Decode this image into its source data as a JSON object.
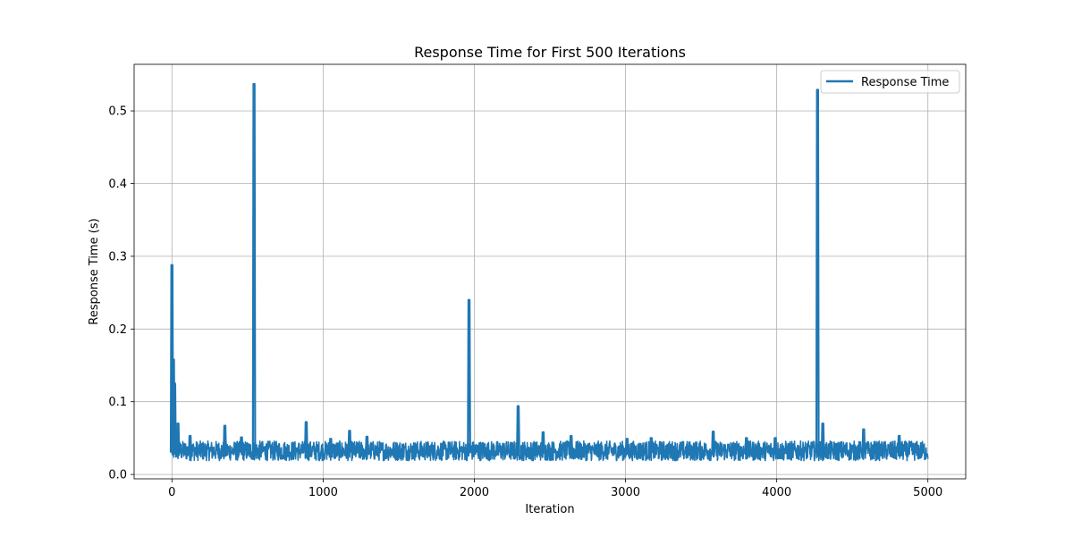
{
  "chart_data": {
    "type": "line",
    "title": "Response Time for First 500 Iterations",
    "xlabel": "Iteration",
    "ylabel": "Response Time (s)",
    "xlim": [
      -250,
      5250
    ],
    "ylim": [
      -0.006,
      0.564
    ],
    "xticks": [
      0,
      1000,
      2000,
      3000,
      4000,
      5000
    ],
    "yticks": [
      0.0,
      0.1,
      0.2,
      0.3,
      0.4,
      0.5
    ],
    "xtick_labels": [
      "0",
      "1000",
      "2000",
      "3000",
      "4000",
      "5000"
    ],
    "ytick_labels": [
      "0.0",
      "0.1",
      "0.2",
      "0.3",
      "0.4",
      "0.5"
    ],
    "grid": true,
    "legend_position": "top-right",
    "series": [
      {
        "name": "Response Time",
        "color": "#1f77b4",
        "baseline": {
          "x_range": [
            0,
            5000
          ],
          "band_min": 0.019,
          "band_max": 0.046,
          "typical": 0.03
        },
        "spikes": [
          {
            "x": 0,
            "y": 0.288
          },
          {
            "x": 10,
            "y": 0.158
          },
          {
            "x": 18,
            "y": 0.125
          },
          {
            "x": 40,
            "y": 0.07
          },
          {
            "x": 120,
            "y": 0.053
          },
          {
            "x": 350,
            "y": 0.067
          },
          {
            "x": 460,
            "y": 0.051
          },
          {
            "x": 543,
            "y": 0.537
          },
          {
            "x": 888,
            "y": 0.072
          },
          {
            "x": 1050,
            "y": 0.049
          },
          {
            "x": 1175,
            "y": 0.06
          },
          {
            "x": 1290,
            "y": 0.052
          },
          {
            "x": 1965,
            "y": 0.24
          },
          {
            "x": 2290,
            "y": 0.094
          },
          {
            "x": 2455,
            "y": 0.058
          },
          {
            "x": 2640,
            "y": 0.053
          },
          {
            "x": 3010,
            "y": 0.049
          },
          {
            "x": 3170,
            "y": 0.05
          },
          {
            "x": 3580,
            "y": 0.059
          },
          {
            "x": 3800,
            "y": 0.05
          },
          {
            "x": 3990,
            "y": 0.05
          },
          {
            "x": 4270,
            "y": 0.529
          },
          {
            "x": 4305,
            "y": 0.07
          },
          {
            "x": 4575,
            "y": 0.062
          },
          {
            "x": 4810,
            "y": 0.053
          }
        ]
      }
    ]
  }
}
